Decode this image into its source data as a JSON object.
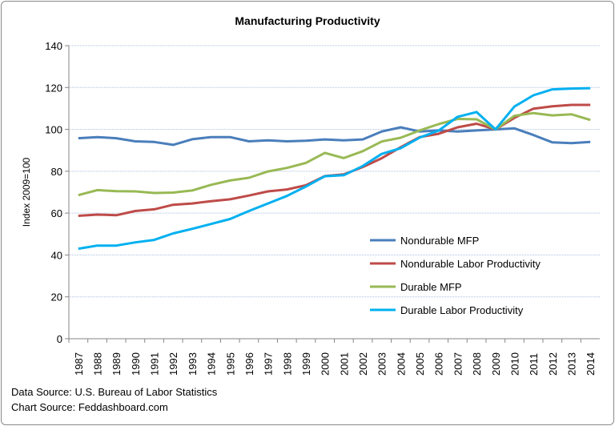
{
  "chart_data": {
    "type": "line",
    "title": "Manufacturing Productivity",
    "xlabel": "",
    "ylabel": "Index 2009=100",
    "ylim": [
      0,
      140
    ],
    "yticks": [
      0,
      20,
      40,
      60,
      80,
      100,
      120,
      140
    ],
    "grid": true,
    "legend_position": "lower-right inside plot",
    "categories": [
      "1987",
      "1988",
      "1989",
      "1990",
      "1991",
      "1992",
      "1993",
      "1994",
      "1995",
      "1996",
      "1997",
      "1998",
      "1999",
      "2000",
      "2001",
      "2002",
      "2003",
      "2004",
      "2005",
      "2006",
      "2007",
      "2008",
      "2009",
      "2010",
      "2011",
      "2012",
      "2013",
      "2014"
    ],
    "series": [
      {
        "name": "Nondurable MFP",
        "color": "#4a7ebb",
        "values": [
          95.8,
          96.3,
          95.8,
          94.3,
          94.0,
          92.6,
          95.3,
          96.3,
          96.3,
          94.3,
          94.8,
          94.3,
          94.6,
          95.2,
          94.8,
          95.2,
          99.0,
          101.0,
          99.0,
          99.5,
          99.0,
          99.5,
          100,
          100.5,
          97.3,
          93.8,
          93.4,
          94.0
        ]
      },
      {
        "name": "Nondurable Labor Productivity",
        "color": "#be4b48",
        "values": [
          58.7,
          59.3,
          59.0,
          61.0,
          61.8,
          64.0,
          64.6,
          65.7,
          66.6,
          68.4,
          70.4,
          71.3,
          73.3,
          77.7,
          78.5,
          82.0,
          86.2,
          91.5,
          96.3,
          97.9,
          101.0,
          102.7,
          100,
          105.5,
          109.9,
          111.0,
          111.7,
          111.7
        ]
      },
      {
        "name": "Durable MFP",
        "color": "#98b954",
        "values": [
          68.6,
          71.0,
          70.5,
          70.4,
          69.6,
          69.8,
          70.8,
          73.5,
          75.6,
          76.9,
          79.9,
          81.6,
          84.0,
          88.8,
          86.3,
          89.6,
          94.2,
          96.0,
          99.5,
          102.5,
          105.0,
          104.8,
          100,
          106.5,
          107.8,
          106.7,
          107.2,
          104.5
        ]
      },
      {
        "name": "Durable Labor Productivity",
        "color": "#00b0f0",
        "values": [
          43.0,
          44.5,
          44.5,
          46.0,
          47.2,
          50.3,
          52.5,
          54.8,
          57.2,
          61.0,
          64.6,
          68.2,
          72.7,
          77.6,
          78.1,
          82.5,
          88.3,
          91.0,
          96.1,
          99.4,
          106.0,
          108.3,
          100,
          110.9,
          116.3,
          119.1,
          119.5,
          119.7
        ]
      }
    ]
  },
  "footer": {
    "data_source": "Data Source: U.S. Bureau of Labor Statistics",
    "chart_source": "Chart Source: Feddashboard.com"
  }
}
